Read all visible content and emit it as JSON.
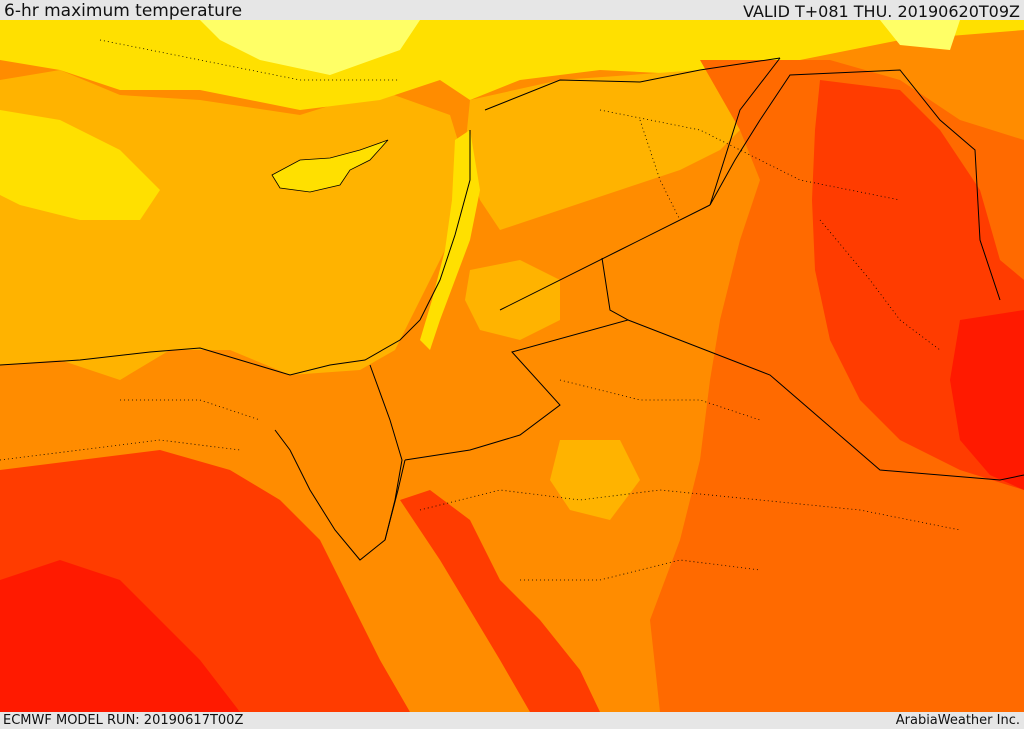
{
  "header": {
    "title": "6-hr maximum temperature",
    "valid": "VALID T+081 THU. 20190620T09Z"
  },
  "footer": {
    "model_run": "ECMWF MODEL RUN: 20190617T00Z",
    "credit": "ArabiaWeather Inc."
  },
  "map": {
    "colors": {
      "pale_yellow": "#ffff66",
      "yellow": "#ffe000",
      "light_orange": "#ffb300",
      "orange": "#ff8c00",
      "dark_orange": "#ff6a00",
      "red_orange": "#ff3c00",
      "red": "#ff1a00",
      "border": "#000000"
    }
  }
}
